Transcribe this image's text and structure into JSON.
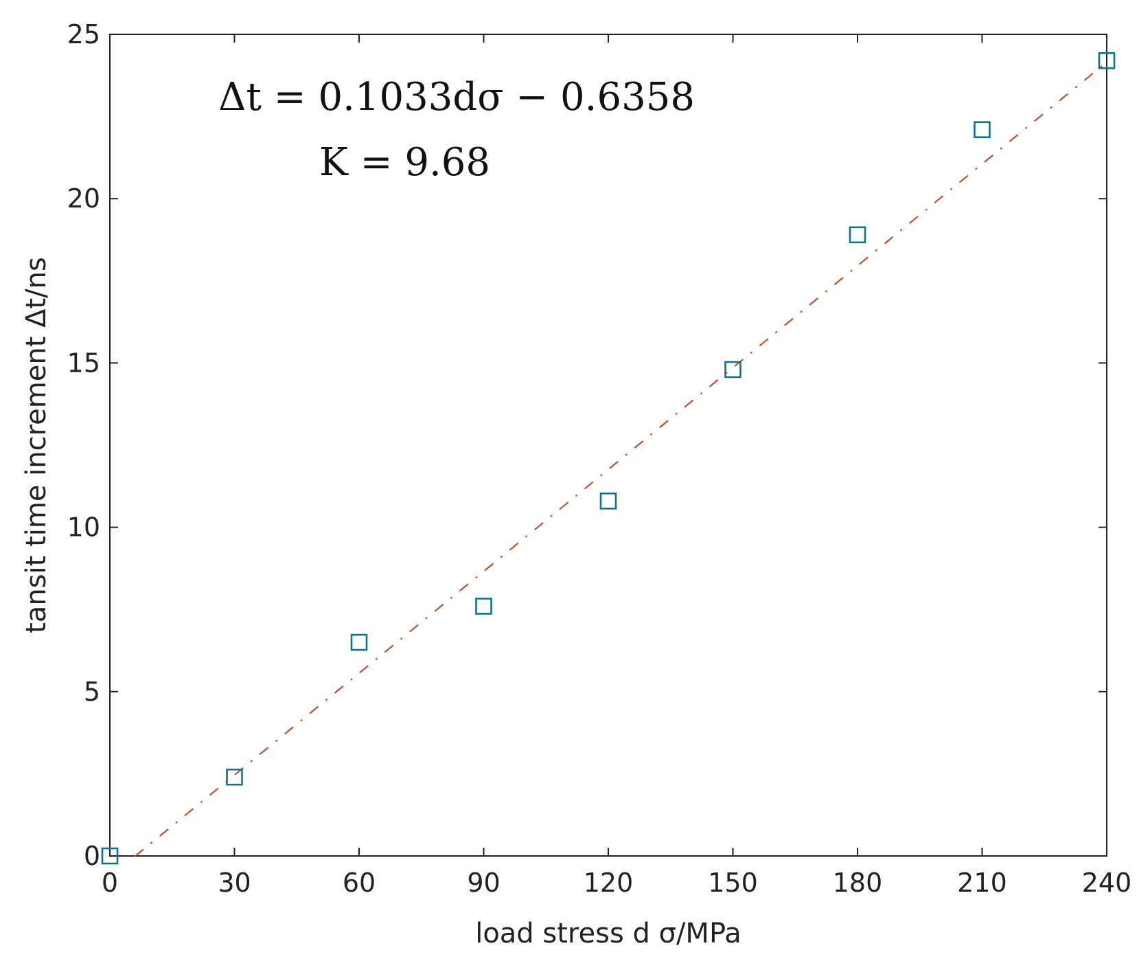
{
  "chart_data": {
    "type": "scatter",
    "title": "",
    "xlabel": "load stress d σ/MPa",
    "ylabel": "tansit time increment  Δt/ns",
    "xlim": [
      0,
      240
    ],
    "ylim": [
      0,
      25
    ],
    "xticks": [
      0,
      30,
      60,
      90,
      120,
      150,
      180,
      210,
      240
    ],
    "yticks": [
      0,
      5,
      10,
      15,
      20,
      25
    ],
    "grid": false,
    "series": [
      {
        "marker": "square",
        "color": "#0e7391",
        "x": [
          0,
          30,
          60,
          90,
          120,
          150,
          180,
          210,
          240
        ],
        "y": [
          0,
          2.4,
          6.5,
          7.6,
          10.8,
          14.8,
          18.9,
          22.1,
          24.2
        ]
      }
    ],
    "fit_line": {
      "style": "dash-dot",
      "color": "#c0502a",
      "slope": 0.1033,
      "intercept": -0.6358,
      "x_range": [
        6,
        240
      ]
    },
    "annotations": [
      "Δt = 0.1033dσ − 0.6358",
      "K = 9.68"
    ]
  }
}
